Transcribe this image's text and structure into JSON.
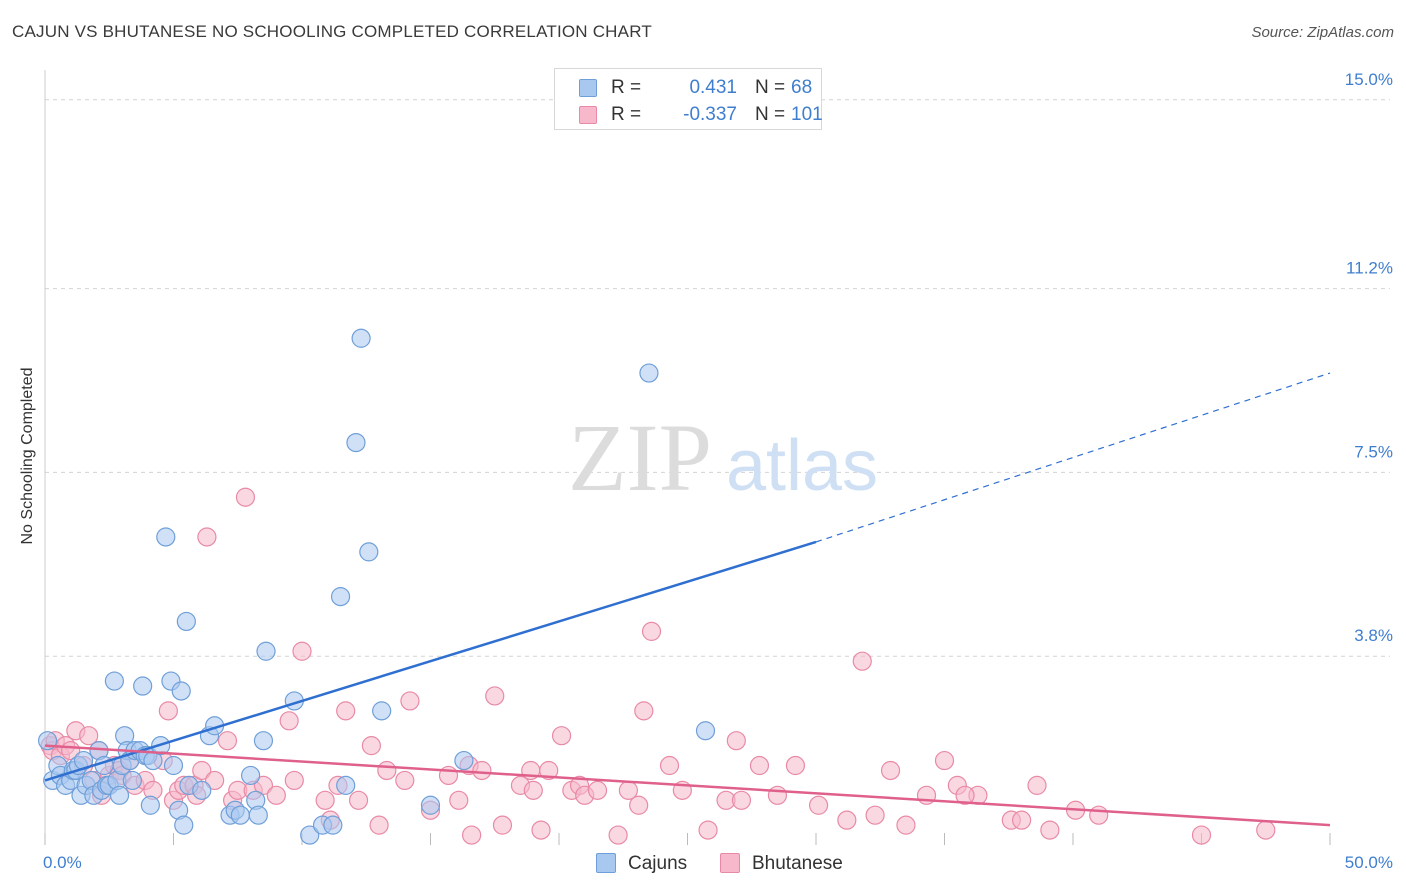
{
  "header": {
    "title": "CAJUN VS BHUTANESE NO SCHOOLING COMPLETED CORRELATION CHART",
    "source": "Source: ZipAtlas.com"
  },
  "watermark": {
    "zip": "ZIP",
    "atlas": "atlas"
  },
  "legend": {
    "rows": [
      {
        "r_label": "R =",
        "r_value": "0.431",
        "n_label": "N =",
        "n_value": "68"
      },
      {
        "r_label": "R =",
        "r_value": "-0.337",
        "n_label": "N =",
        "n_value": "101"
      }
    ]
  },
  "bottom_legend": {
    "cajuns": "Cajuns",
    "bhutanese": "Bhutanese"
  },
  "colors": {
    "cajun_fill": "#a9c8f0",
    "cajun_stroke": "#6f9fd8",
    "cajun_line": "#2e6fd0",
    "bhutanese_fill": "#f6b8ca",
    "bhutanese_stroke": "#e88aa6",
    "bhutanese_line": "#e0608c",
    "tick_label": "#3f7ecf",
    "grid": "#d4d4d4"
  },
  "chart_data": {
    "type": "scatter",
    "title": "CAJUN VS BHUTANESE NO SCHOOLING COMPLETED CORRELATION CHART",
    "xlabel": "",
    "ylabel": "No Schooling Completed",
    "xlim": [
      0,
      50
    ],
    "ylim": [
      0,
      15.6
    ],
    "x_tick_labels": [
      "0.0%",
      "50.0%"
    ],
    "y_ticks": [
      3.8,
      7.5,
      11.2,
      15.0
    ],
    "y_tick_labels": [
      "3.8%",
      "7.5%",
      "11.2%",
      "15.0%"
    ],
    "grid": true,
    "legend_position": "top-center",
    "series": [
      {
        "name": "Cajuns",
        "points": [
          [
            0.1,
            2.1
          ],
          [
            0.3,
            1.3
          ],
          [
            0.5,
            1.6
          ],
          [
            0.6,
            1.4
          ],
          [
            0.8,
            1.2
          ],
          [
            1.0,
            1.3
          ],
          [
            1.1,
            1.5
          ],
          [
            1.2,
            1.5
          ],
          [
            1.3,
            1.6
          ],
          [
            1.4,
            1.0
          ],
          [
            1.5,
            1.7
          ],
          [
            1.6,
            1.2
          ],
          [
            1.8,
            1.3
          ],
          [
            1.9,
            1.0
          ],
          [
            2.1,
            1.9
          ],
          [
            2.2,
            1.1
          ],
          [
            2.3,
            1.6
          ],
          [
            2.4,
            1.2
          ],
          [
            2.5,
            1.2
          ],
          [
            2.7,
            3.3
          ],
          [
            2.8,
            1.3
          ],
          [
            2.9,
            1.0
          ],
          [
            3.0,
            1.6
          ],
          [
            3.1,
            2.2
          ],
          [
            3.2,
            1.9
          ],
          [
            3.3,
            1.7
          ],
          [
            3.4,
            1.3
          ],
          [
            3.5,
            1.9
          ],
          [
            3.7,
            1.9
          ],
          [
            3.8,
            3.2
          ],
          [
            3.9,
            1.8
          ],
          [
            4.0,
            1.8
          ],
          [
            4.1,
            0.8
          ],
          [
            4.2,
            1.7
          ],
          [
            4.5,
            2.0
          ],
          [
            4.7,
            6.2
          ],
          [
            4.9,
            3.3
          ],
          [
            5.0,
            1.6
          ],
          [
            5.2,
            0.7
          ],
          [
            5.3,
            3.1
          ],
          [
            5.4,
            0.4
          ],
          [
            5.5,
            4.5
          ],
          [
            5.6,
            1.2
          ],
          [
            6.1,
            1.1
          ],
          [
            6.4,
            2.2
          ],
          [
            6.6,
            2.4
          ],
          [
            7.2,
            0.6
          ],
          [
            7.4,
            0.7
          ],
          [
            7.6,
            0.6
          ],
          [
            8.0,
            1.4
          ],
          [
            8.2,
            0.9
          ],
          [
            8.3,
            0.6
          ],
          [
            8.5,
            2.1
          ],
          [
            8.6,
            3.9
          ],
          [
            9.7,
            2.9
          ],
          [
            10.3,
            0.2
          ],
          [
            10.8,
            0.4
          ],
          [
            11.2,
            0.4
          ],
          [
            11.5,
            5.0
          ],
          [
            11.7,
            1.2
          ],
          [
            12.1,
            8.1
          ],
          [
            12.3,
            10.2
          ],
          [
            12.6,
            5.9
          ],
          [
            13.1,
            2.7
          ],
          [
            15.0,
            0.8
          ],
          [
            16.3,
            1.7
          ],
          [
            23.5,
            9.5
          ],
          [
            25.7,
            2.3
          ]
        ]
      },
      {
        "name": "Bhutanese",
        "points": [
          [
            0.2,
            2.0
          ],
          [
            0.3,
            1.9
          ],
          [
            0.4,
            2.1
          ],
          [
            0.6,
            1.8
          ],
          [
            0.8,
            2.0
          ],
          [
            1.0,
            1.9
          ],
          [
            1.2,
            2.3
          ],
          [
            1.5,
            1.6
          ],
          [
            1.7,
            2.2
          ],
          [
            1.9,
            1.3
          ],
          [
            2.1,
            1.9
          ],
          [
            2.2,
            1.0
          ],
          [
            2.5,
            1.4
          ],
          [
            2.7,
            1.6
          ],
          [
            2.9,
            1.5
          ],
          [
            3.0,
            1.4
          ],
          [
            3.3,
            1.7
          ],
          [
            3.5,
            1.2
          ],
          [
            3.9,
            1.3
          ],
          [
            4.2,
            1.1
          ],
          [
            4.6,
            1.7
          ],
          [
            4.8,
            2.7
          ],
          [
            5.0,
            0.9
          ],
          [
            5.2,
            1.1
          ],
          [
            5.4,
            1.2
          ],
          [
            5.8,
            1.2
          ],
          [
            5.9,
            1.0
          ],
          [
            6.1,
            1.5
          ],
          [
            6.3,
            6.2
          ],
          [
            6.6,
            1.3
          ],
          [
            7.1,
            2.1
          ],
          [
            7.3,
            0.9
          ],
          [
            7.5,
            1.1
          ],
          [
            7.8,
            7.0
          ],
          [
            8.1,
            1.1
          ],
          [
            8.5,
            1.2
          ],
          [
            9.0,
            1.0
          ],
          [
            9.5,
            2.5
          ],
          [
            9.7,
            1.3
          ],
          [
            10.0,
            3.9
          ],
          [
            10.9,
            0.9
          ],
          [
            11.1,
            0.5
          ],
          [
            11.4,
            1.2
          ],
          [
            11.7,
            2.7
          ],
          [
            12.2,
            0.9
          ],
          [
            12.7,
            2.0
          ],
          [
            13.0,
            0.4
          ],
          [
            13.3,
            1.5
          ],
          [
            14.0,
            1.3
          ],
          [
            14.2,
            2.9
          ],
          [
            15.0,
            0.7
          ],
          [
            15.7,
            1.4
          ],
          [
            16.1,
            0.9
          ],
          [
            16.5,
            1.6
          ],
          [
            16.6,
            0.2
          ],
          [
            17.0,
            1.5
          ],
          [
            17.5,
            3.0
          ],
          [
            17.8,
            0.4
          ],
          [
            18.5,
            1.2
          ],
          [
            18.9,
            1.5
          ],
          [
            19.0,
            1.1
          ],
          [
            19.3,
            0.3
          ],
          [
            19.6,
            1.5
          ],
          [
            20.1,
            2.2
          ],
          [
            20.5,
            1.1
          ],
          [
            20.8,
            1.2
          ],
          [
            21.0,
            1.0
          ],
          [
            21.5,
            1.1
          ],
          [
            22.3,
            0.2
          ],
          [
            22.7,
            1.1
          ],
          [
            23.1,
            0.8
          ],
          [
            23.3,
            2.7
          ],
          [
            23.6,
            4.3
          ],
          [
            24.3,
            1.6
          ],
          [
            24.8,
            1.1
          ],
          [
            25.8,
            0.3
          ],
          [
            26.5,
            0.9
          ],
          [
            26.9,
            2.1
          ],
          [
            27.1,
            0.9
          ],
          [
            27.8,
            1.6
          ],
          [
            28.5,
            1.0
          ],
          [
            29.2,
            1.6
          ],
          [
            30.1,
            0.8
          ],
          [
            31.2,
            0.5
          ],
          [
            31.8,
            3.7
          ],
          [
            32.3,
            0.6
          ],
          [
            32.9,
            1.5
          ],
          [
            33.5,
            0.4
          ],
          [
            34.3,
            1.0
          ],
          [
            35.0,
            1.7
          ],
          [
            35.5,
            1.2
          ],
          [
            36.3,
            1.0
          ],
          [
            37.6,
            0.5
          ],
          [
            38.0,
            0.5
          ],
          [
            38.6,
            1.2
          ],
          [
            39.1,
            0.3
          ],
          [
            40.1,
            0.7
          ],
          [
            41.0,
            0.6
          ],
          [
            45.0,
            0.2
          ],
          [
            47.5,
            0.3
          ],
          [
            35.8,
            1.0
          ]
        ]
      }
    ],
    "trend_lines": [
      {
        "series": "Cajuns",
        "solid_from": [
          0,
          1.3
        ],
        "solid_to": [
          30,
          6.1
        ],
        "dashed_to": [
          50,
          9.5
        ]
      },
      {
        "series": "Bhutanese",
        "from": [
          0,
          2.0
        ],
        "to": [
          50,
          0.4
        ]
      }
    ]
  }
}
